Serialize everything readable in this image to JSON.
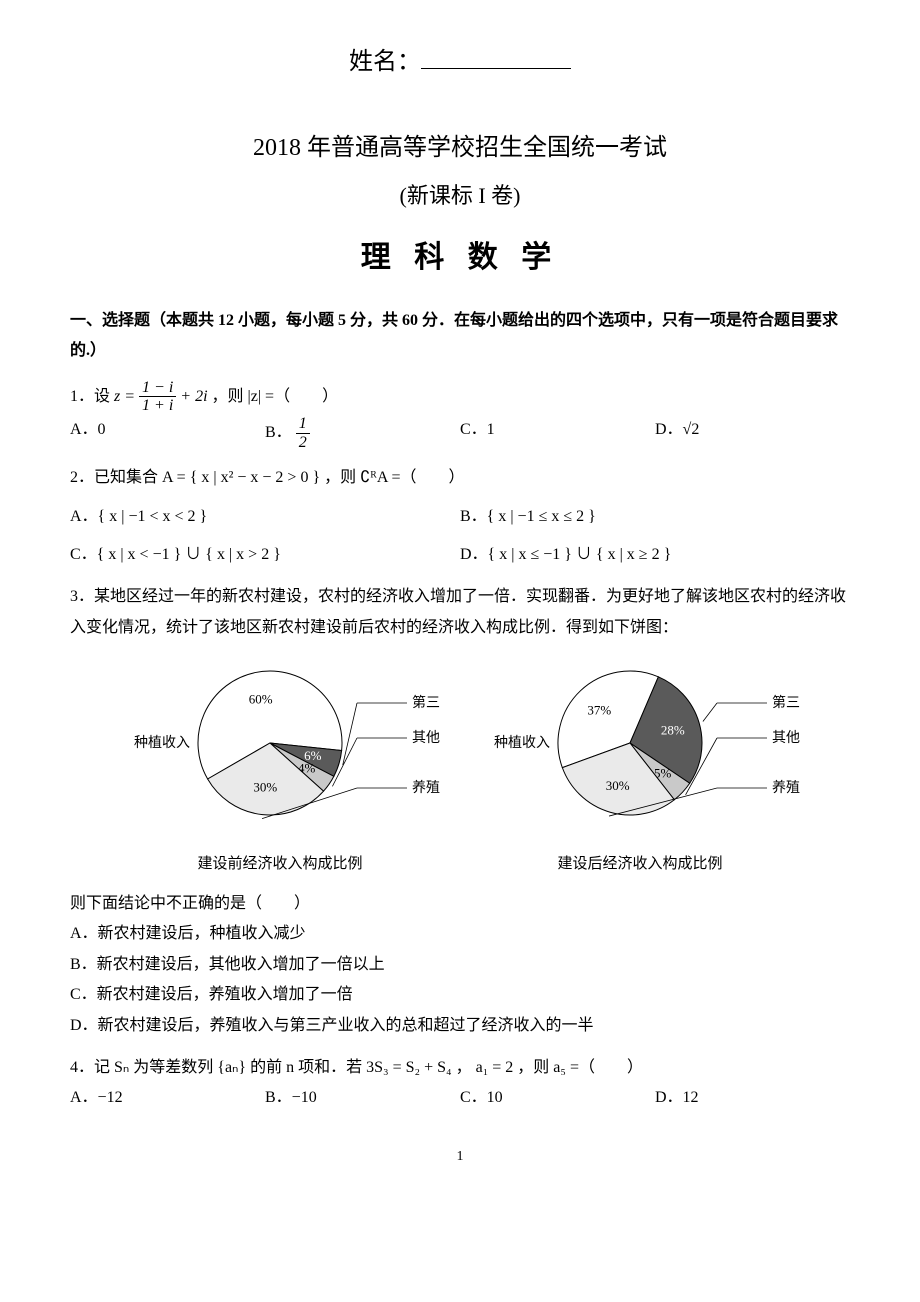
{
  "header": {
    "name_label": "姓名：",
    "title_line1": "2018 年普通高等学校招生全国统一考试",
    "title_line2": "(新课标 I 卷)",
    "title_line3": "理 科 数 学"
  },
  "section1": {
    "header": "一、选择题（本题共 12 小题，每小题 5 分，共 60 分．在每小题给出的四个选项中，只有一项是符合题目要求的.）"
  },
  "q1": {
    "stem_prefix": "1．设 ",
    "stem_suffix": " ，则 |z| =（　　）",
    "optA": "A．0",
    "optB_prefix": "B．",
    "optC": "C．1",
    "optD": "D．√2"
  },
  "q2": {
    "stem": "2．已知集合 A = { x | x² − x − 2 > 0 } ，则 ∁ᴿA =（　　）",
    "optA": "A．{ x | −1 < x < 2 }",
    "optB": "B．{ x | −1 ≤ x ≤ 2 }",
    "optC": "C．{ x | x < −1 } ∪ { x | x > 2 }",
    "optD": "D．{ x | x ≤ −1 } ∪ { x | x ≥ 2 }"
  },
  "q3": {
    "stem": "3．某地区经过一年的新农村建设，农村的经济收入增加了一倍．实现翻番．为更好地了解该地区农村的经济收入变化情况，统计了该地区新农村建设前后农村的经济收入构成比例．得到如下饼图：",
    "post": "则下面结论中不正确的是（　　）",
    "optA": "A．新农村建设后，种植收入减少",
    "optB": "B．新农村建设后，其他收入增加了一倍以上",
    "optC": "C．新农村建设后，养殖收入增加了一倍",
    "optD": "D．新农村建设后，养殖收入与第三产业收入的总和超过了经济收入的一半"
  },
  "q4": {
    "stem": "4．记 Sₙ 为等差数列 {aₙ} 的前 n 项和．若 3S₃ = S₂ + S₄ ， a₁ = 2 ，则 a₅ =（　　）",
    "optA": "A．−12",
    "optB": "B．−10",
    "optC": "C．10",
    "optD": "D．12"
  },
  "pie_before": {
    "caption": "建设前经济收入构成比例",
    "label_left": "种植收入",
    "label_tr": "第三产业收入",
    "label_r": "其他收入",
    "label_br": "养殖收入",
    "slices": [
      {
        "label": "60%",
        "value": 60,
        "color": "#ffffff"
      },
      {
        "label": "6%",
        "value": 6,
        "color": "#5a5a5a"
      },
      {
        "label": "4%",
        "value": 4,
        "color": "#c9c9c9"
      },
      {
        "label": "30%",
        "value": 30,
        "color": "#eaeaea"
      }
    ],
    "start_angle_deg": 150,
    "radius": 72,
    "font_size": 13,
    "stroke": "#000000"
  },
  "pie_after": {
    "caption": "建设后经济收入构成比例",
    "label_left": "种植收入",
    "label_tr": "第三产业收入",
    "label_r": "其他收入",
    "label_br": "养殖收入",
    "slices": [
      {
        "label": "37%",
        "value": 37,
        "color": "#ffffff"
      },
      {
        "label": "28%",
        "value": 28,
        "color": "#5a5a5a"
      },
      {
        "label": "5%",
        "value": 5,
        "color": "#c9c9c9"
      },
      {
        "label": "30%",
        "value": 30,
        "color": "#eaeaea"
      }
    ],
    "start_angle_deg": 160,
    "radius": 72,
    "font_size": 13,
    "stroke": "#000000"
  },
  "footer": {
    "page": "1"
  }
}
